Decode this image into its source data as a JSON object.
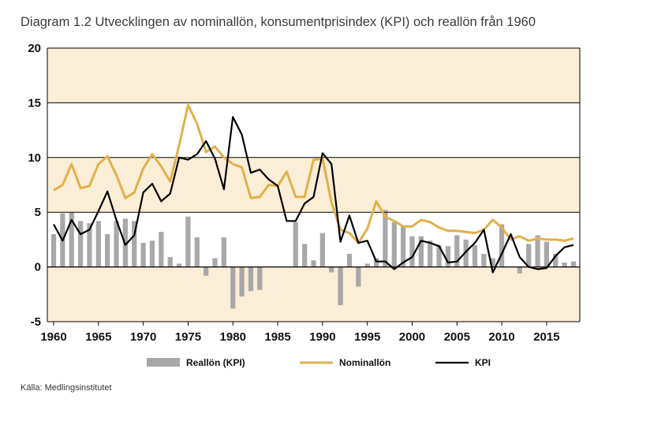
{
  "title": "Diagram 1.2 Utvecklingen av nominallön, konsumentprisindex (KPI) och reallön från 1960",
  "source": "Källa: Medlingsinstitutet",
  "colors": {
    "band": "#fbeed6",
    "bars": "#a8a8a8",
    "nominal": "#e2b04a",
    "kpi": "#000000",
    "gridline": "#000000"
  },
  "chart_data": {
    "type": "bar+line",
    "xlim": [
      1960,
      2018
    ],
    "ylim": [
      -5,
      20
    ],
    "x_ticks": [
      1960,
      1965,
      1970,
      1975,
      1980,
      1985,
      1990,
      1995,
      2000,
      2005,
      2010,
      2015
    ],
    "y_ticks": [
      20,
      15,
      10,
      5,
      0,
      -5
    ],
    "shaded_bands": [
      [
        15,
        20
      ],
      [
        5,
        10
      ],
      [
        -5,
        0
      ]
    ],
    "legend_position": "bottom",
    "x": [
      1960,
      1961,
      1962,
      1963,
      1964,
      1965,
      1966,
      1967,
      1968,
      1969,
      1970,
      1971,
      1972,
      1973,
      1974,
      1975,
      1976,
      1977,
      1978,
      1979,
      1980,
      1981,
      1982,
      1983,
      1984,
      1985,
      1986,
      1987,
      1988,
      1989,
      1990,
      1991,
      1992,
      1993,
      1994,
      1995,
      1996,
      1997,
      1998,
      1999,
      2000,
      2001,
      2002,
      2003,
      2004,
      2005,
      2006,
      2007,
      2008,
      2009,
      2010,
      2011,
      2012,
      2013,
      2014,
      2015,
      2016,
      2017,
      2018
    ],
    "series": [
      {
        "name": "Reallön (KPI)",
        "type": "bar",
        "values": [
          3.0,
          4.9,
          5.0,
          4.2,
          4.0,
          4.2,
          3.0,
          4.2,
          4.4,
          4.2,
          2.2,
          2.4,
          3.2,
          0.9,
          0.3,
          4.6,
          2.7,
          -0.8,
          0.8,
          2.7,
          -3.8,
          -2.7,
          -2.2,
          -2.1,
          0,
          0,
          0,
          4.1,
          2.1,
          0.6,
          3.1,
          -0.5,
          -3.5,
          1.2,
          -1.8,
          0.3,
          0.8,
          5.2,
          4.1,
          3.7,
          2.8,
          2.8,
          2.4,
          2.0,
          1.9,
          2.9,
          2.5,
          2.0,
          1.2,
          0.8,
          3.9,
          0,
          -0.6,
          2.1,
          2.9,
          2.3,
          1.2,
          0.4,
          0.5
        ]
      },
      {
        "name": "Nominallön",
        "type": "line",
        "values": [
          7.0,
          7.5,
          9.4,
          7.2,
          7.4,
          9.4,
          10.1,
          8.4,
          6.3,
          6.8,
          9.0,
          10.3,
          9.2,
          7.8,
          11.1,
          14.8,
          13.1,
          10.5,
          11.0,
          10.0,
          9.4,
          9.1,
          6.3,
          6.4,
          7.5,
          7.4,
          8.7,
          6.4,
          6.4,
          9.8,
          9.9,
          5.9,
          3.4,
          3.1,
          2.2,
          3.5,
          6.0,
          4.6,
          4.2,
          3.7,
          3.7,
          4.3,
          4.1,
          3.6,
          3.3,
          3.3,
          3.2,
          3.1,
          3.4,
          4.3,
          3.6,
          2.5,
          2.8,
          2.4,
          2.6,
          2.5,
          2.5,
          2.4,
          2.6
        ]
      },
      {
        "name": "KPI",
        "type": "line",
        "values": [
          3.9,
          2.4,
          4.3,
          3.0,
          3.4,
          5.1,
          6.9,
          4.3,
          2.0,
          2.9,
          6.8,
          7.6,
          6.0,
          6.7,
          10.0,
          9.8,
          10.3,
          11.5,
          9.9,
          7.1,
          13.7,
          12.1,
          8.6,
          8.9,
          8.0,
          7.4,
          4.2,
          4.2,
          5.8,
          6.4,
          10.4,
          9.4,
          2.3,
          4.7,
          2.2,
          2.4,
          0.5,
          0.5,
          -0.2,
          0.4,
          0.9,
          2.4,
          2.2,
          1.9,
          0.4,
          0.5,
          1.4,
          2.2,
          3.4,
          -0.5,
          1.2,
          3.0,
          0.9,
          0,
          -0.2,
          -0.1,
          1.0,
          1.8,
          2.0
        ]
      }
    ]
  }
}
